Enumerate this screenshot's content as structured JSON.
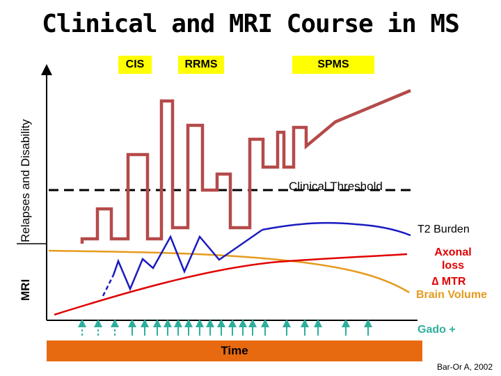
{
  "title": "Clinical and MRI Course in MS",
  "stages": [
    {
      "label": "CIS"
    },
    {
      "label": "RRMS"
    },
    {
      "label": "SPMS"
    }
  ],
  "axes": {
    "y_upper_label": "Relapses and Disability",
    "y_lower_label": "MRI"
  },
  "threshold_label": "Clinical Threshold",
  "labels": {
    "t2_burden": "T2 Burden",
    "axonal_loss": "Axonal loss",
    "mtr": "∆ MTR",
    "brain_volume": "Brain Volume",
    "gado": "Gado +"
  },
  "time_label": "Time",
  "source": "Bar-Or A, 2002",
  "colors": {
    "stage_fill": "#ffff00",
    "clinical": "#b54a4a",
    "t2_burden": "#1a1abf",
    "axonal": "#e00000",
    "brain_volume": "#e69a1e",
    "gado": "#2fae9d",
    "time_bar": "#e86a10"
  }
}
